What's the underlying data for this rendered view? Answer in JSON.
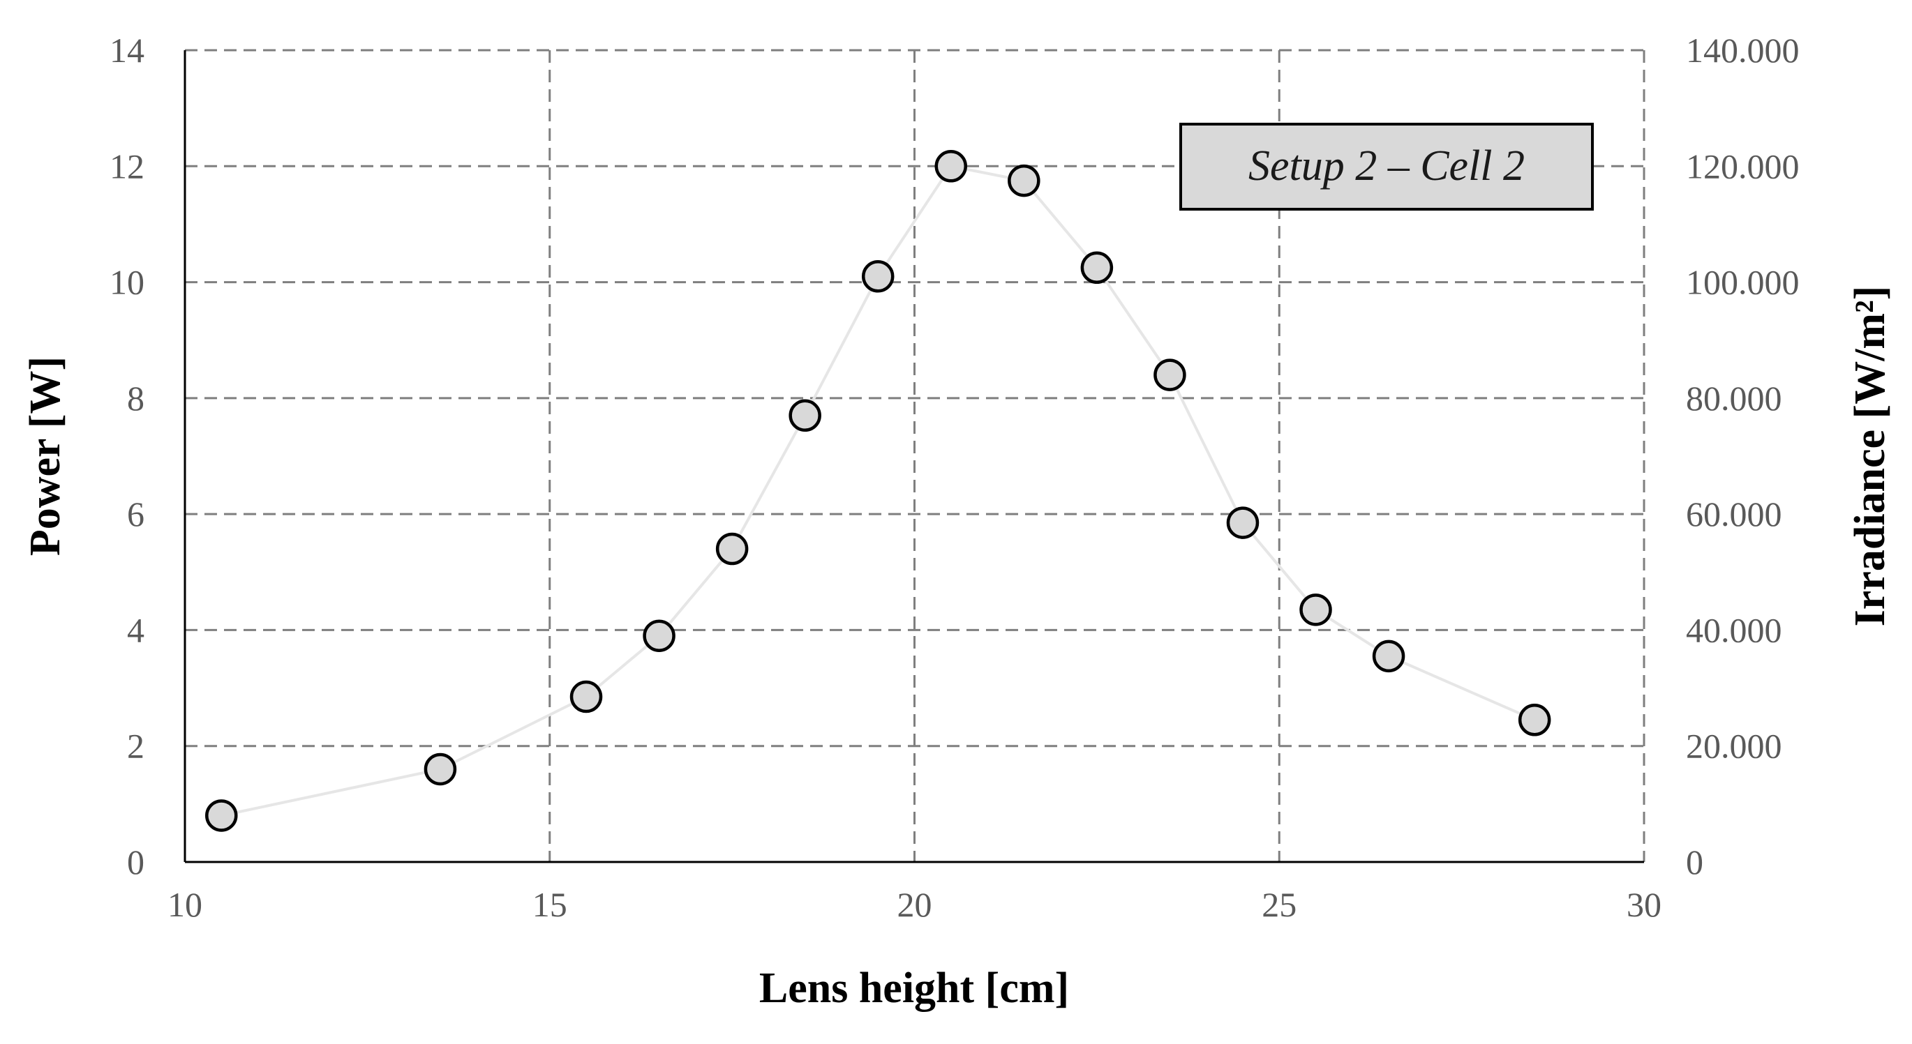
{
  "chart_data": {
    "type": "scatter",
    "xlabel": "Lens height [cm]",
    "ylabel": "Power [W]",
    "y2label": "Irradiance [W/m²]",
    "xlim": [
      10,
      30
    ],
    "ylim": [
      0,
      14
    ],
    "y2lim": [
      0,
      140000
    ],
    "x_ticks": [
      "10",
      "15",
      "20",
      "25",
      "30"
    ],
    "y_ticks": [
      "0",
      "2",
      "4",
      "6",
      "8",
      "10",
      "12",
      "14"
    ],
    "y2_ticks": [
      "0",
      "20.000",
      "40.000",
      "60.000",
      "80.000",
      "100.000",
      "120.000",
      "140.000"
    ],
    "grid": true,
    "grid_style": "dashed",
    "annotation": "Setup 2 – Cell 2",
    "series": [
      {
        "x": [
          10.5,
          13.5,
          15.5,
          16.5,
          17.5,
          18.5,
          19.5,
          20.5,
          21.5,
          22.5,
          23.5,
          24.5,
          25.5,
          26.5,
          28.5
        ],
        "y": [
          0.8,
          1.6,
          2.85,
          3.9,
          5.4,
          7.7,
          10.1,
          12.0,
          11.75,
          10.25,
          8.4,
          5.85,
          4.35,
          3.55,
          2.45
        ],
        "marker": "circle",
        "marker_fill": "#d9d9d9",
        "marker_edge": "#000000",
        "line_color": "#e6e6e6"
      }
    ]
  }
}
